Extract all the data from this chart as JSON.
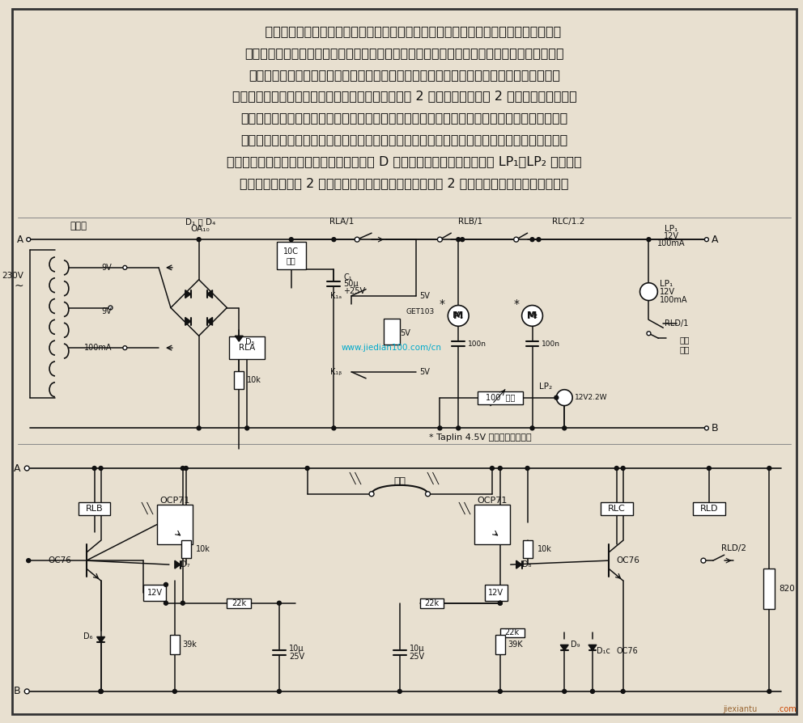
{
  "background_color": "#e8e0d0",
  "border_color": "#222222",
  "text_color": "#111111",
  "watermark": "www.jiedian100.com/cn",
  "footer_text": "* Taplin 4.5V 齿轮传动式电动机",
  "bottom_text": "jiexiantu",
  "desc_lines": [
    "    本电路能使电池供电的玩具汽车能够在房间里自动行进，撞到墙壁或障碍物能够自动后",
    "退，而且在电池需要重新充电时会自动回归到原位。每一个后轮由一个很小的齿轮传动式电动",
    "机带动，因而一个电动机反向转动就能改变汽车的走向。在汽车车头前端有一个能够自由旋",
    "转、自动归位的车档。当车头碕到阔碍物时，车档的 2 个触点闭合，使得 2 个电动机都反方向旋",
    "转，于是汽车往后退、拐弯、再沿新方向前进。如果车头的一边被碕了一下，另一侧的电动机就",
    "反方向旋转，于是汽车扭一下头，自动避开。为了使汽车能够自动充电，在地板上铺一条白带，",
    "它一直铺到带插座的充电器那里。当继电器 D 发现电池电压太低时，它就使 LP₁，LP₂ 通电，照",
    "亮白带。汽车上的 2 个光晶体管此时就能找到白带，控制 2 个电动机，使汽车沿白带前进。"
  ]
}
